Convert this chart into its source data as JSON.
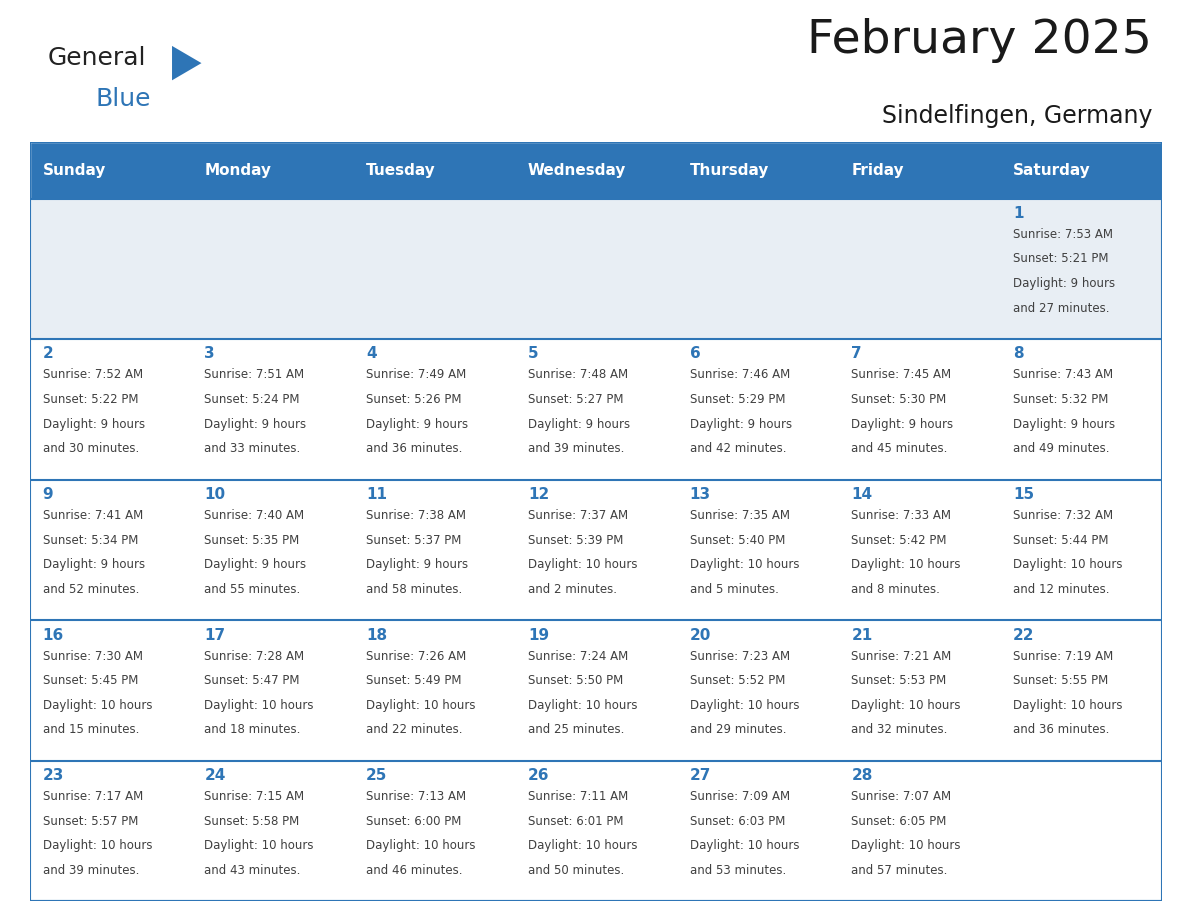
{
  "title": "February 2025",
  "subtitle": "Sindelfingen, Germany",
  "days_of_week": [
    "Sunday",
    "Monday",
    "Tuesday",
    "Wednesday",
    "Thursday",
    "Friday",
    "Saturday"
  ],
  "header_bg": "#2E75B6",
  "header_text_color": "#FFFFFF",
  "row1_bg": "#E8EEF4",
  "cell_bg": "#FFFFFF",
  "border_color": "#2E75B6",
  "day_number_color": "#2E75B6",
  "text_color": "#404040",
  "calendar_data": [
    [
      null,
      null,
      null,
      null,
      null,
      null,
      {
        "day": 1,
        "sunrise": "7:53 AM",
        "sunset": "5:21 PM",
        "daylight": "9 hours",
        "daylight2": "and 27 minutes."
      }
    ],
    [
      {
        "day": 2,
        "sunrise": "7:52 AM",
        "sunset": "5:22 PM",
        "daylight": "9 hours",
        "daylight2": "and 30 minutes."
      },
      {
        "day": 3,
        "sunrise": "7:51 AM",
        "sunset": "5:24 PM",
        "daylight": "9 hours",
        "daylight2": "and 33 minutes."
      },
      {
        "day": 4,
        "sunrise": "7:49 AM",
        "sunset": "5:26 PM",
        "daylight": "9 hours",
        "daylight2": "and 36 minutes."
      },
      {
        "day": 5,
        "sunrise": "7:48 AM",
        "sunset": "5:27 PM",
        "daylight": "9 hours",
        "daylight2": "and 39 minutes."
      },
      {
        "day": 6,
        "sunrise": "7:46 AM",
        "sunset": "5:29 PM",
        "daylight": "9 hours",
        "daylight2": "and 42 minutes."
      },
      {
        "day": 7,
        "sunrise": "7:45 AM",
        "sunset": "5:30 PM",
        "daylight": "9 hours",
        "daylight2": "and 45 minutes."
      },
      {
        "day": 8,
        "sunrise": "7:43 AM",
        "sunset": "5:32 PM",
        "daylight": "9 hours",
        "daylight2": "and 49 minutes."
      }
    ],
    [
      {
        "day": 9,
        "sunrise": "7:41 AM",
        "sunset": "5:34 PM",
        "daylight": "9 hours",
        "daylight2": "and 52 minutes."
      },
      {
        "day": 10,
        "sunrise": "7:40 AM",
        "sunset": "5:35 PM",
        "daylight": "9 hours",
        "daylight2": "and 55 minutes."
      },
      {
        "day": 11,
        "sunrise": "7:38 AM",
        "sunset": "5:37 PM",
        "daylight": "9 hours",
        "daylight2": "and 58 minutes."
      },
      {
        "day": 12,
        "sunrise": "7:37 AM",
        "sunset": "5:39 PM",
        "daylight": "10 hours",
        "daylight2": "and 2 minutes."
      },
      {
        "day": 13,
        "sunrise": "7:35 AM",
        "sunset": "5:40 PM",
        "daylight": "10 hours",
        "daylight2": "and 5 minutes."
      },
      {
        "day": 14,
        "sunrise": "7:33 AM",
        "sunset": "5:42 PM",
        "daylight": "10 hours",
        "daylight2": "and 8 minutes."
      },
      {
        "day": 15,
        "sunrise": "7:32 AM",
        "sunset": "5:44 PM",
        "daylight": "10 hours",
        "daylight2": "and 12 minutes."
      }
    ],
    [
      {
        "day": 16,
        "sunrise": "7:30 AM",
        "sunset": "5:45 PM",
        "daylight": "10 hours",
        "daylight2": "and 15 minutes."
      },
      {
        "day": 17,
        "sunrise": "7:28 AM",
        "sunset": "5:47 PM",
        "daylight": "10 hours",
        "daylight2": "and 18 minutes."
      },
      {
        "day": 18,
        "sunrise": "7:26 AM",
        "sunset": "5:49 PM",
        "daylight": "10 hours",
        "daylight2": "and 22 minutes."
      },
      {
        "day": 19,
        "sunrise": "7:24 AM",
        "sunset": "5:50 PM",
        "daylight": "10 hours",
        "daylight2": "and 25 minutes."
      },
      {
        "day": 20,
        "sunrise": "7:23 AM",
        "sunset": "5:52 PM",
        "daylight": "10 hours",
        "daylight2": "and 29 minutes."
      },
      {
        "day": 21,
        "sunrise": "7:21 AM",
        "sunset": "5:53 PM",
        "daylight": "10 hours",
        "daylight2": "and 32 minutes."
      },
      {
        "day": 22,
        "sunrise": "7:19 AM",
        "sunset": "5:55 PM",
        "daylight": "10 hours",
        "daylight2": "and 36 minutes."
      }
    ],
    [
      {
        "day": 23,
        "sunrise": "7:17 AM",
        "sunset": "5:57 PM",
        "daylight": "10 hours",
        "daylight2": "and 39 minutes."
      },
      {
        "day": 24,
        "sunrise": "7:15 AM",
        "sunset": "5:58 PM",
        "daylight": "10 hours",
        "daylight2": "and 43 minutes."
      },
      {
        "day": 25,
        "sunrise": "7:13 AM",
        "sunset": "6:00 PM",
        "daylight": "10 hours",
        "daylight2": "and 46 minutes."
      },
      {
        "day": 26,
        "sunrise": "7:11 AM",
        "sunset": "6:01 PM",
        "daylight": "10 hours",
        "daylight2": "and 50 minutes."
      },
      {
        "day": 27,
        "sunrise": "7:09 AM",
        "sunset": "6:03 PM",
        "daylight": "10 hours",
        "daylight2": "and 53 minutes."
      },
      {
        "day": 28,
        "sunrise": "7:07 AM",
        "sunset": "6:05 PM",
        "daylight": "10 hours",
        "daylight2": "and 57 minutes."
      },
      null
    ]
  ],
  "logo_text1": "General",
  "logo_text2": "Blue",
  "logo_color1": "#222222",
  "logo_color2": "#2E75B6",
  "logo_triangle_color": "#2E75B6",
  "title_fontsize": 34,
  "subtitle_fontsize": 17,
  "header_fontsize": 11,
  "day_num_fontsize": 11,
  "cell_fontsize": 8.5
}
